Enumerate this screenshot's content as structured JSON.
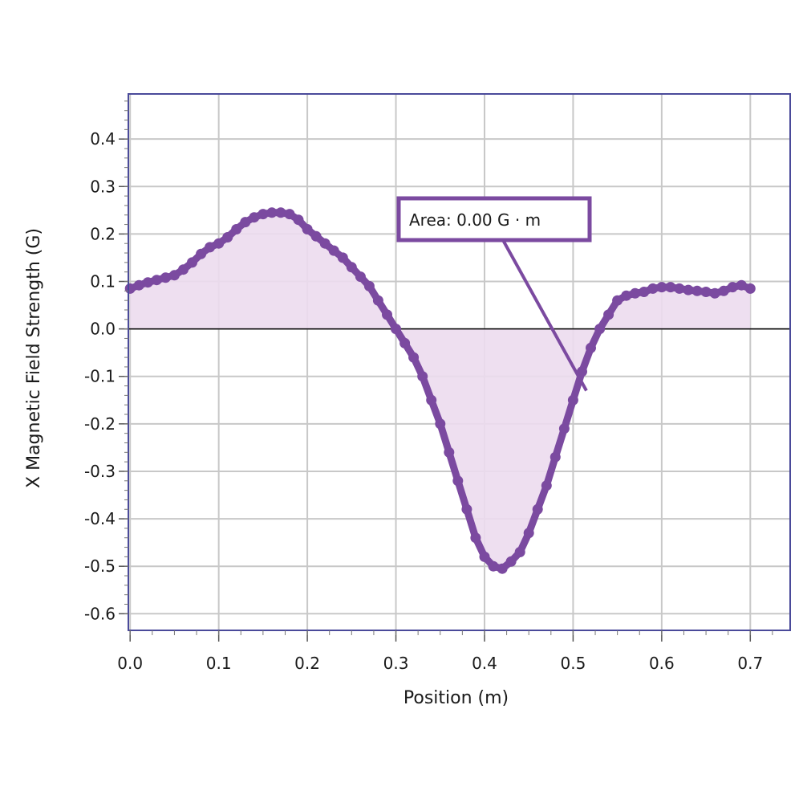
{
  "chart_data": {
    "type": "scatter",
    "title": "",
    "xlabel": "Position (m)",
    "ylabel": "X Magnetic Field Strength (G)",
    "xlim": [
      -0.002,
      0.745
    ],
    "ylim": [
      -0.635,
      0.495
    ],
    "x_ticks": [
      "0.0",
      "0.1",
      "0.2",
      "0.3",
      "0.4",
      "0.5",
      "0.6",
      "0.7"
    ],
    "y_ticks": [
      "0.4",
      "0.3",
      "0.2",
      "0.1",
      "0.0",
      "-0.1",
      "-0.2",
      "-0.3",
      "-0.4",
      "-0.5",
      "-0.6"
    ],
    "grid": true,
    "area_fill": true,
    "annotation": {
      "text": "Area: 0.00 G · m",
      "points_to": [
        0.515,
        -0.13
      ]
    },
    "colors": {
      "series": "#7b4aa0",
      "fill": "#ecdcee",
      "grid": "#c8c8c8",
      "frame": "#4a4a9a",
      "zero_line": "#000000"
    },
    "series": [
      {
        "x": [
          0.0,
          0.01,
          0.02,
          0.03,
          0.04,
          0.05,
          0.06,
          0.07,
          0.08,
          0.09,
          0.1,
          0.11,
          0.12,
          0.13,
          0.14,
          0.15,
          0.16,
          0.17,
          0.18,
          0.19,
          0.2,
          0.21,
          0.22,
          0.23,
          0.24,
          0.25,
          0.26,
          0.27,
          0.28,
          0.29,
          0.3,
          0.31,
          0.32,
          0.33,
          0.34,
          0.35,
          0.36,
          0.37,
          0.38,
          0.39,
          0.4,
          0.41,
          0.42,
          0.43,
          0.44,
          0.45,
          0.46,
          0.47,
          0.48,
          0.49,
          0.5,
          0.51,
          0.52,
          0.53,
          0.54,
          0.55,
          0.56,
          0.57,
          0.58,
          0.59,
          0.6,
          0.61,
          0.62,
          0.63,
          0.64,
          0.65,
          0.66,
          0.67,
          0.68,
          0.69,
          0.7
        ],
        "y": [
          0.085,
          0.092,
          0.098,
          0.103,
          0.108,
          0.113,
          0.125,
          0.14,
          0.158,
          0.172,
          0.18,
          0.193,
          0.21,
          0.225,
          0.235,
          0.242,
          0.245,
          0.245,
          0.242,
          0.23,
          0.21,
          0.195,
          0.18,
          0.165,
          0.15,
          0.13,
          0.11,
          0.09,
          0.06,
          0.03,
          0.0,
          -0.03,
          -0.06,
          -0.1,
          -0.15,
          -0.2,
          -0.26,
          -0.32,
          -0.38,
          -0.44,
          -0.48,
          -0.5,
          -0.505,
          -0.49,
          -0.47,
          -0.43,
          -0.38,
          -0.33,
          -0.27,
          -0.21,
          -0.15,
          -0.09,
          -0.04,
          0.0,
          0.03,
          0.06,
          0.07,
          0.075,
          0.078,
          0.085,
          0.088,
          0.088,
          0.085,
          0.082,
          0.08,
          0.078,
          0.075,
          0.08,
          0.088,
          0.092,
          0.085
        ]
      }
    ]
  }
}
